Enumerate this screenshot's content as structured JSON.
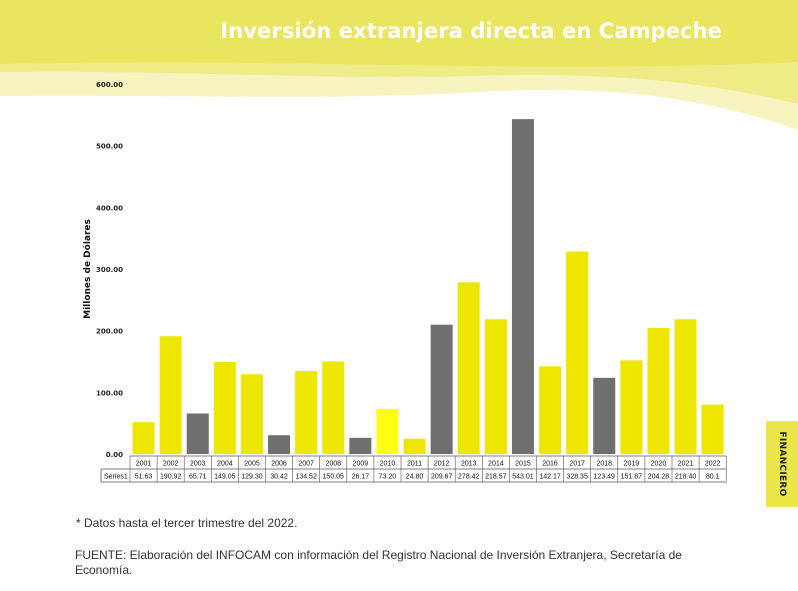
{
  "page": {
    "title": "Inversión extranjera directa en Campeche",
    "side_tab": "FINANCIERO",
    "footnote": "* Datos hasta el tercer trimestre del 2022.",
    "source": "FUENTE: Elaboración del INFOCAM con información del Registro Nacional de Inversión Extranjera, Secretaría de Economía."
  },
  "colors": {
    "header_light": "#f6f3b2",
    "header_mid": "#eeea7a",
    "bar_yellow": "#ece600",
    "bar_gray": "#6f6f6f",
    "bar_highlight": "#ffff14",
    "side_tab": "#ebe64a"
  },
  "chart_data": {
    "type": "bar",
    "ylabel": "Millones de Dólares",
    "ylim": [
      0,
      600
    ],
    "yticks": [
      "0.00",
      "100.00",
      "200.00",
      "300.00",
      "400.00",
      "500.00",
      "600.00"
    ],
    "grid": false,
    "legend": "none",
    "categories": [
      "2001",
      "2002",
      "2003",
      "2004",
      "2005",
      "2006",
      "2007",
      "2008",
      "2009",
      "2010",
      "2011",
      "2012",
      "2013",
      "2014",
      "2015",
      "2016",
      "2017",
      "2018",
      "2019",
      "2020",
      "2021",
      "2022"
    ],
    "series": [
      {
        "name": "Series1",
        "values": [
          51.63,
          190.92,
          65.71,
          149.05,
          129.3,
          30.42,
          134.52,
          150.05,
          26.17,
          73.2,
          24.8,
          209.67,
          278.42,
          218.57,
          543.01,
          142.17,
          328.35,
          123.49,
          151.87,
          204.28,
          218.4,
          80.1
        ],
        "labels": [
          "51.63",
          "190.92",
          "65.71",
          "149.05",
          "129.30",
          "30.42",
          "134.52",
          "150.05",
          "26.17",
          "73.20",
          "24.80",
          "209.67",
          "278.42",
          "218.57",
          "543.01",
          "142.17",
          "328.35",
          "123.49",
          "151.87",
          "204.28",
          "218.40",
          "80.1"
        ],
        "bar_colors": [
          "yellow",
          "yellow",
          "gray",
          "yellow",
          "yellow",
          "gray",
          "yellow",
          "yellow",
          "gray",
          "highlight",
          "yellow",
          "gray",
          "yellow",
          "yellow",
          "gray",
          "yellow",
          "yellow",
          "gray",
          "yellow",
          "yellow",
          "yellow",
          "yellow"
        ]
      }
    ]
  }
}
